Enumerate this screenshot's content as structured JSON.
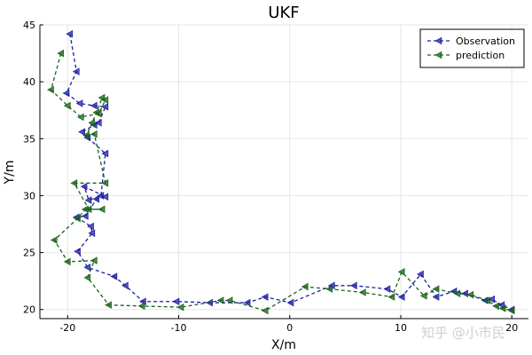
{
  "watermark": "知乎 @小市民",
  "chart_data": {
    "type": "line",
    "title": "UKF",
    "xlabel": "X/m",
    "ylabel": "Y/m",
    "xlim": [
      -22.5,
      21.5
    ],
    "ylim": [
      19.2,
      45
    ],
    "xticks": [
      -20,
      -10,
      0,
      10,
      20
    ],
    "yticks": [
      20,
      25,
      30,
      35,
      40,
      45
    ],
    "grid": true,
    "legend_position": "top-right",
    "series": [
      {
        "name": "Observation",
        "color": "#1f1fa3",
        "marker": "left-triangle",
        "linestyle": "dashed",
        "x": [
          -19.8,
          -19.2,
          -20.1,
          -18.9,
          -17.6,
          -16.6,
          -17.2,
          -17.6,
          -18.7,
          -18.2,
          -16.6,
          -17.0,
          -18.1,
          -18.5,
          -16.6,
          -17.4,
          -18.4,
          -19.2,
          -17.9,
          -17.8,
          -19.1,
          -18.2,
          -15.8,
          -14.8,
          -13.2,
          -10.2,
          -7.2,
          -3.8,
          -2.2,
          0.1,
          3.8,
          5.8,
          8.8,
          10.1,
          11.8,
          13.2,
          14.8,
          15.8,
          17.6,
          18.2,
          19.1,
          20.0
        ],
        "y": [
          44.2,
          40.9,
          39.0,
          38.1,
          37.9,
          37.8,
          36.4,
          36.2,
          35.6,
          35.1,
          33.7,
          30.0,
          29.6,
          30.8,
          29.9,
          29.7,
          28.2,
          28.1,
          27.3,
          26.7,
          25.1,
          23.7,
          22.9,
          22.1,
          20.7,
          20.7,
          20.6,
          20.6,
          21.1,
          20.6,
          22.1,
          22.1,
          21.8,
          21.1,
          23.1,
          21.1,
          21.6,
          21.4,
          20.8,
          20.9,
          20.4,
          20.0
        ]
      },
      {
        "name": "prediction",
        "color": "#196219",
        "marker": "left-triangle",
        "linestyle": "dashed",
        "x": [
          -20.6,
          -21.5,
          -20.0,
          -18.8,
          -17.2,
          -16.6,
          -16.9,
          -17.4,
          -17.8,
          -18.3,
          -17.6,
          -16.6,
          -19.4,
          -18.1,
          -16.9,
          -18.4,
          -19.1,
          -21.2,
          -20.0,
          -17.6,
          -18.2,
          -16.3,
          -13.3,
          -9.8,
          -6.2,
          -5.4,
          -2.2,
          1.4,
          3.6,
          6.6,
          9.2,
          10.1,
          12.1,
          13.2,
          15.1,
          16.3,
          17.8,
          18.6,
          19.2,
          20.0
        ],
        "y": [
          42.5,
          39.3,
          37.9,
          36.9,
          37.2,
          38.4,
          38.6,
          37.3,
          36.4,
          35.3,
          35.4,
          31.1,
          31.1,
          28.8,
          28.8,
          28.8,
          28.0,
          26.1,
          24.2,
          24.3,
          22.8,
          20.4,
          20.3,
          20.2,
          20.8,
          20.8,
          19.9,
          22.0,
          21.8,
          21.5,
          21.1,
          23.3,
          21.2,
          21.8,
          21.4,
          21.3,
          20.8,
          20.3,
          20.1,
          19.9
        ]
      }
    ]
  }
}
